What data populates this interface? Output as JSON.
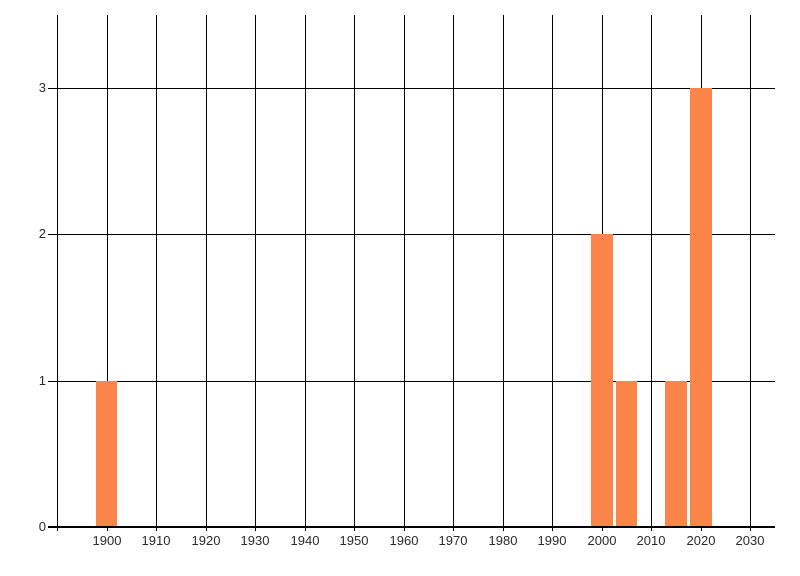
{
  "chart_data": {
    "type": "bar",
    "title": "",
    "xlabel": "",
    "ylabel": "",
    "x": [
      1900,
      2000,
      2005,
      2015,
      2020
    ],
    "values": [
      1,
      2,
      1,
      1,
      3
    ],
    "bar_width_years": 4.4,
    "xlim": [
      1890,
      2035
    ],
    "ylim": [
      0,
      3.5
    ],
    "x_gridline_step": 10,
    "x_tick_labels": [
      "1900",
      "1910",
      "1920",
      "1930",
      "1940",
      "1950",
      "1960",
      "1970",
      "1980",
      "1990",
      "2000",
      "2010",
      "2020",
      "2030"
    ],
    "y_tick_labels": [
      "0",
      "1",
      "2",
      "3"
    ],
    "grid": true,
    "legend_position": "none",
    "bars_drawn_above_gridlines": true,
    "colors": {
      "bar": "#FB8448",
      "grid": "#000000",
      "axis": "#000000",
      "tick_label": "#2B2B2B",
      "background": "#FFFFFF"
    }
  }
}
